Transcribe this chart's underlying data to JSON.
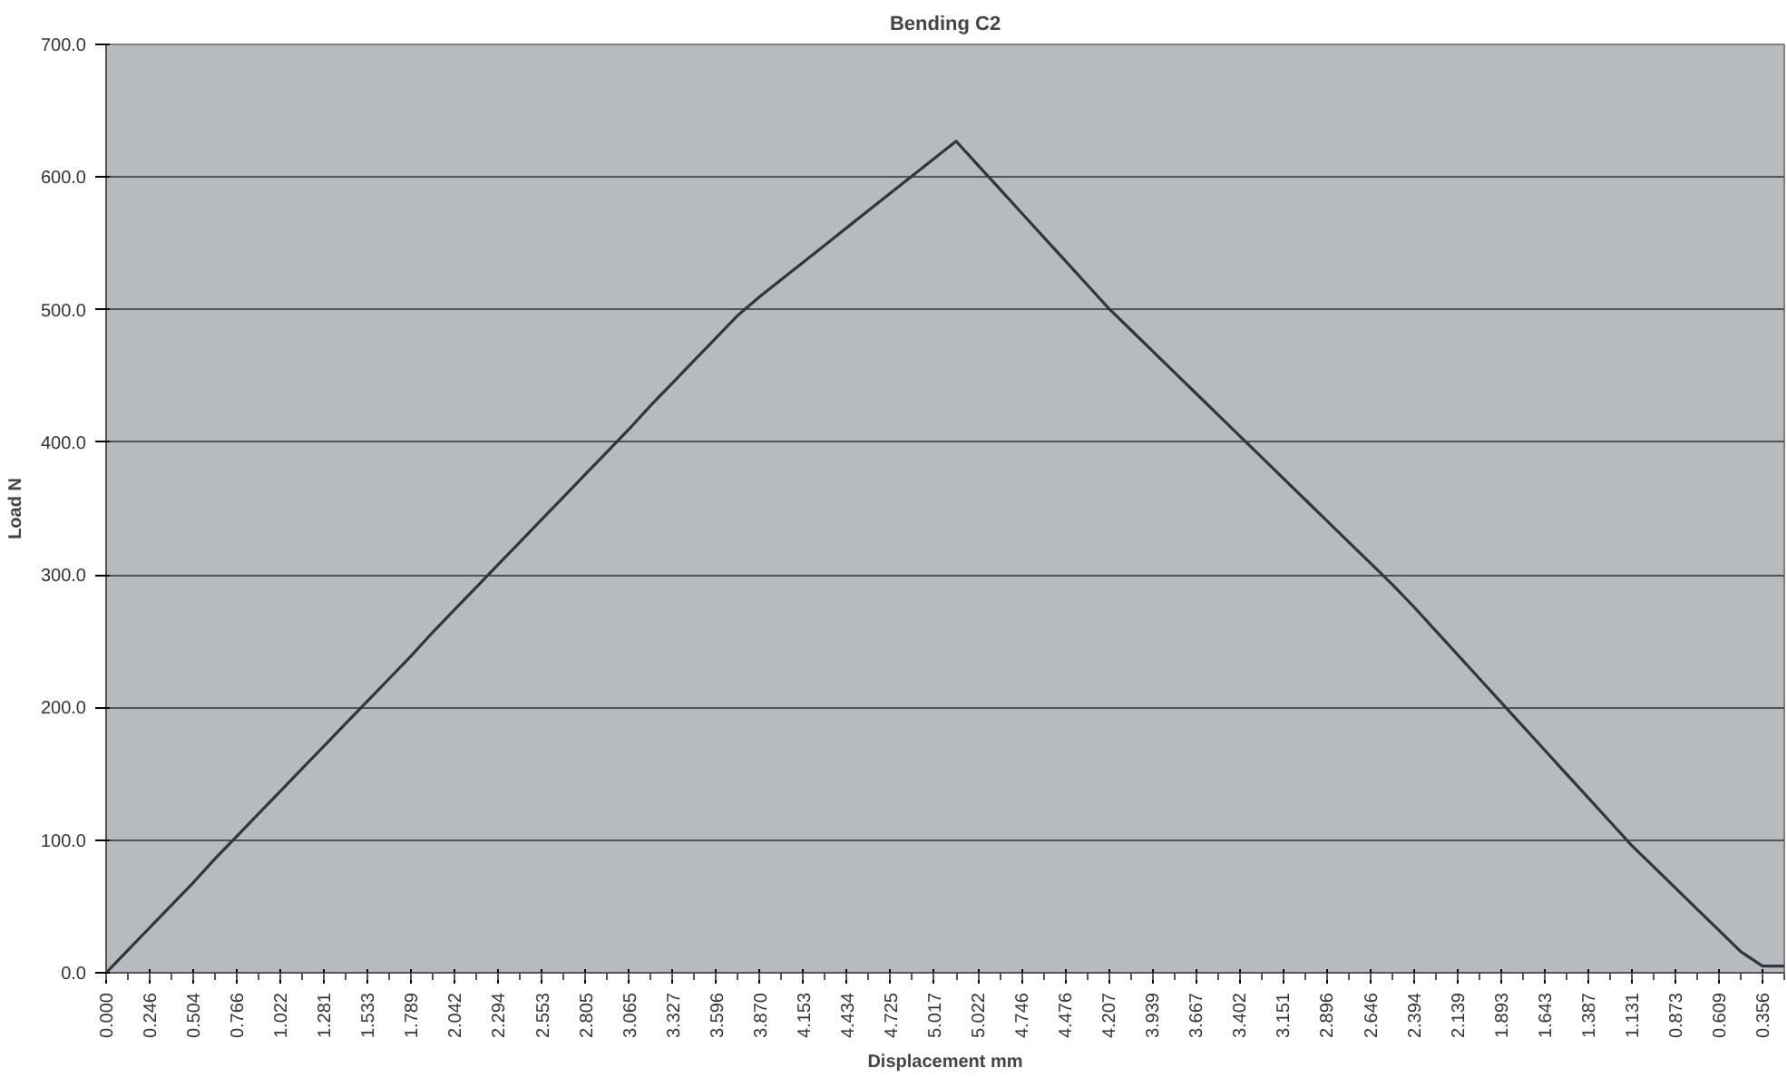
{
  "chart_data": {
    "type": "line",
    "title": "Bending C2",
    "xlabel": "Displacement mm",
    "ylabel": "Load N",
    "categories": [
      "0.000",
      null,
      "0.246",
      null,
      "0.504",
      null,
      "0.766",
      null,
      "1.022",
      null,
      "1.281",
      null,
      "1.533",
      null,
      "1.789",
      null,
      "2.042",
      null,
      "2.294",
      null,
      "2.553",
      null,
      "2.805",
      null,
      "3.065",
      null,
      "3.327",
      null,
      "3.596",
      null,
      "3.870",
      null,
      "4.153",
      null,
      "4.434",
      null,
      "4.725",
      null,
      "5.017",
      null,
      "5.022",
      null,
      "4.746",
      null,
      "4.476",
      null,
      "4.207",
      null,
      "3.939",
      null,
      "3.667",
      null,
      "3.402",
      null,
      "3.151",
      null,
      "2.896",
      null,
      "2.646",
      null,
      "2.394",
      null,
      "2.139",
      null,
      "1.893",
      null,
      "1.643",
      null,
      "1.387",
      null,
      "1.131",
      null,
      "0.873",
      null,
      "0.609",
      null,
      "0.356",
      null
    ],
    "series": [
      {
        "color": "#2f3640",
        "values": [
          0,
          17,
          34,
          51,
          68,
          86,
          103,
          120,
          137,
          154,
          171,
          188,
          205,
          222,
          239,
          257,
          274,
          291,
          308,
          325,
          342,
          359,
          376,
          393,
          410,
          428,
          445,
          462,
          479,
          496,
          510,
          523,
          536,
          549,
          562,
          575,
          588,
          601,
          614,
          627,
          609,
          591,
          573,
          555,
          537,
          519,
          501,
          485,
          469,
          453,
          437,
          421,
          405,
          389,
          373,
          357,
          341,
          325,
          309,
          293,
          276,
          258,
          240,
          222,
          204,
          186,
          168,
          150,
          132,
          114,
          96,
          80,
          64,
          48,
          32,
          16,
          5,
          5
        ]
      }
    ],
    "ylim": [
      0,
      700
    ],
    "yticks": [
      {
        "value": 0,
        "label": "0.0"
      },
      {
        "value": 100,
        "label": "100.0"
      },
      {
        "value": 200,
        "label": "200.0"
      },
      {
        "value": 300,
        "label": "300.0"
      },
      {
        "value": 400,
        "label": "400.0"
      },
      {
        "value": 500,
        "label": "500.0"
      },
      {
        "value": 600,
        "label": "600.0"
      },
      {
        "value": 700,
        "label": "700.0"
      }
    ],
    "grid": "y",
    "marker": "none",
    "line_style": "solid"
  }
}
